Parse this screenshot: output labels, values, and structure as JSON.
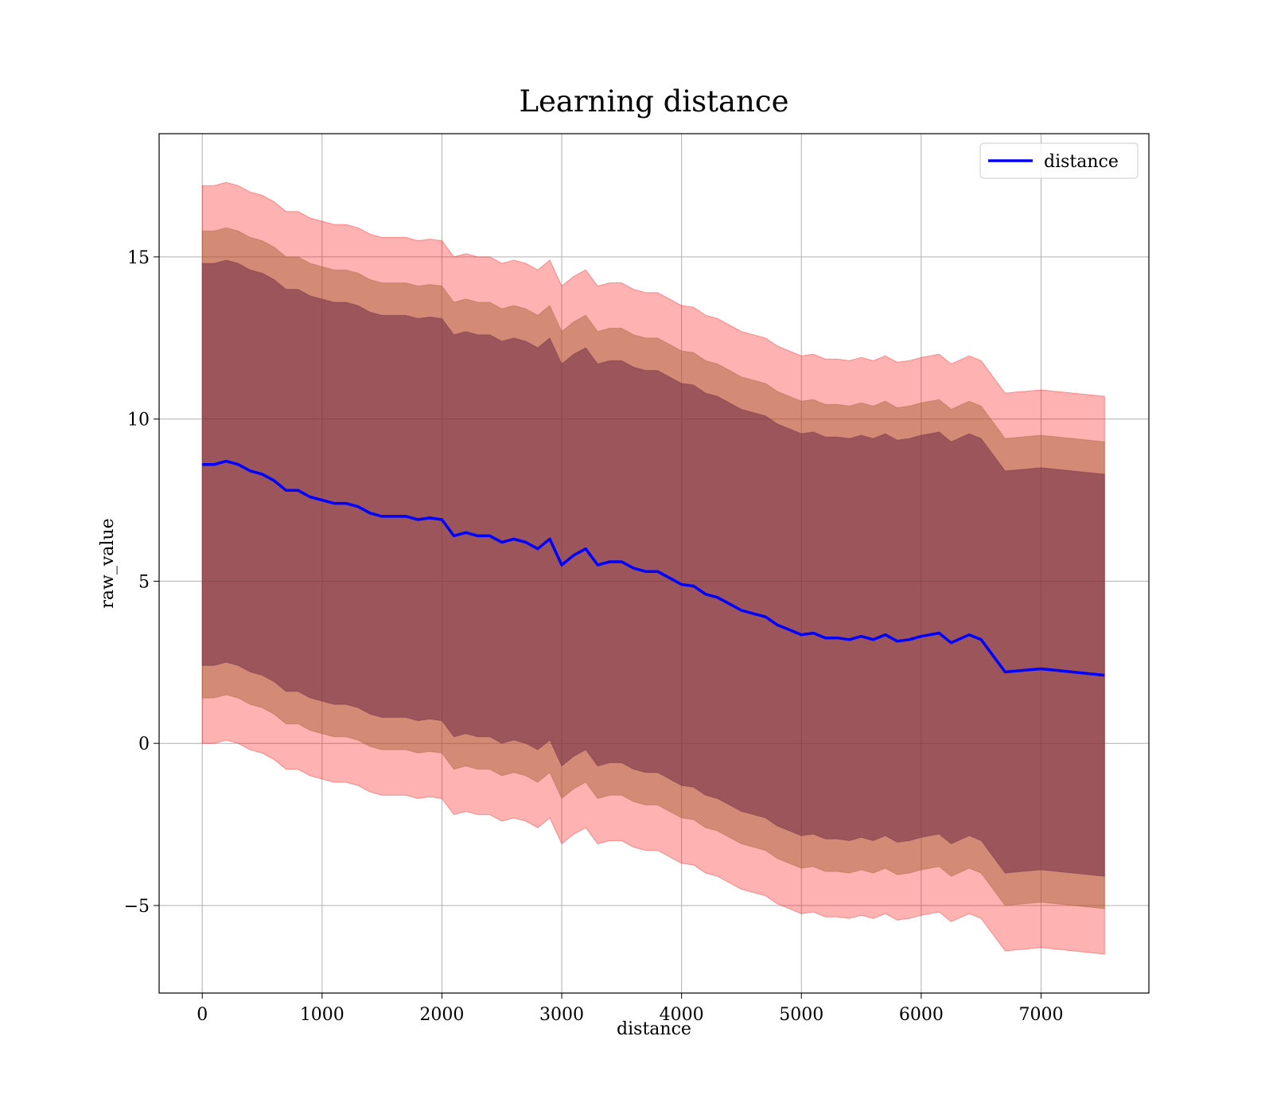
{
  "chart_data": {
    "type": "line",
    "title": "Learning distance",
    "xlabel": "distance",
    "ylabel": "raw_value",
    "xlim": [
      -360,
      7900
    ],
    "ylim": [
      -7.7,
      18.8
    ],
    "xticks": [
      0,
      1000,
      2000,
      3000,
      4000,
      5000,
      6000,
      7000
    ],
    "yticks": [
      -5,
      0,
      5,
      10,
      15
    ],
    "ytick_labels": [
      "−5",
      "0",
      "5",
      "10",
      "15"
    ],
    "grid": true,
    "legend": {
      "placement": "top-right",
      "entries": [
        "distance"
      ]
    },
    "colors": {
      "line": "#0000ff",
      "band_outer": "#ff0000",
      "band_middle": "#a05a2c",
      "band_inner": "#6b2a45",
      "grid": "#b0b0b0"
    },
    "series": [
      {
        "name": "distance",
        "x": [
          0,
          100,
          200,
          300,
          400,
          500,
          600,
          700,
          800,
          900,
          1000,
          1100,
          1200,
          1300,
          1400,
          1500,
          1600,
          1700,
          1800,
          1900,
          2000,
          2100,
          2200,
          2300,
          2400,
          2500,
          2600,
          2700,
          2800,
          2900,
          3000,
          3100,
          3200,
          3300,
          3400,
          3500,
          3600,
          3700,
          3800,
          3900,
          4000,
          4100,
          4200,
          4300,
          4400,
          4500,
          4600,
          4700,
          4800,
          4900,
          5000,
          5100,
          5200,
          5300,
          5400,
          5500,
          5600,
          5700,
          5800,
          5900,
          6000,
          6150,
          6250,
          6400,
          6500,
          6700,
          7000,
          7530
        ],
        "y": [
          8.6,
          8.6,
          8.7,
          8.6,
          8.4,
          8.3,
          8.1,
          7.8,
          7.8,
          7.6,
          7.5,
          7.4,
          7.4,
          7.3,
          7.1,
          7.0,
          7.0,
          7.0,
          6.9,
          6.95,
          6.9,
          6.4,
          6.5,
          6.4,
          6.4,
          6.2,
          6.3,
          6.2,
          6.0,
          6.3,
          5.5,
          5.8,
          6.0,
          5.5,
          5.6,
          5.6,
          5.4,
          5.3,
          5.3,
          5.1,
          4.9,
          4.85,
          4.6,
          4.5,
          4.3,
          4.1,
          4.0,
          3.9,
          3.65,
          3.5,
          3.35,
          3.4,
          3.25,
          3.25,
          3.2,
          3.3,
          3.2,
          3.35,
          3.15,
          3.2,
          3.3,
          3.4,
          3.1,
          3.35,
          3.2,
          2.2,
          2.3,
          2.1
        ]
      }
    ],
    "bands": [
      {
        "half_width": 8.6
      },
      {
        "half_width": 7.2
      },
      {
        "half_width": 6.2
      }
    ]
  }
}
